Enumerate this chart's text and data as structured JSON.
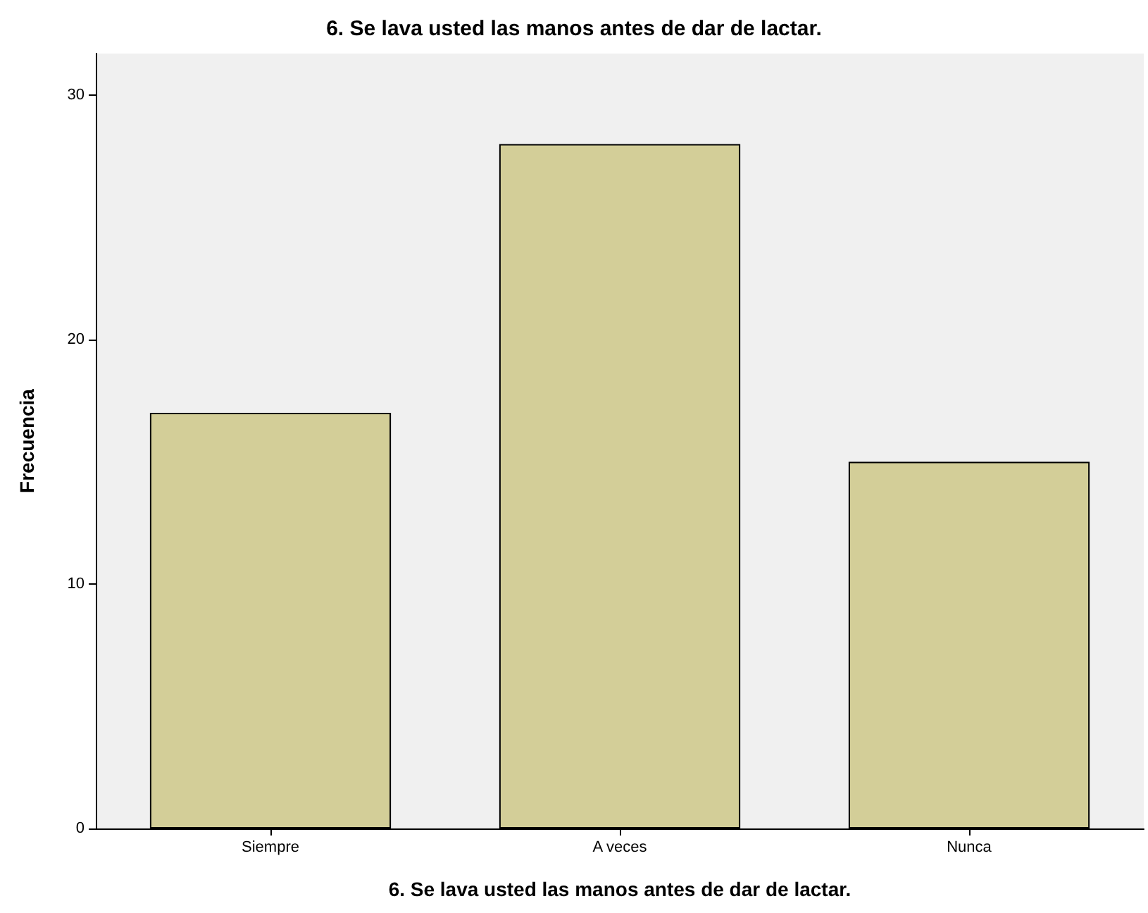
{
  "chart_data": {
    "type": "bar",
    "title": "6. Se lava usted las manos antes de dar de lactar.",
    "xlabel": "6. Se lava usted las manos antes de dar de lactar.",
    "ylabel": "Frecuencia",
    "categories": [
      "Siempre",
      "A veces",
      "Nunca"
    ],
    "values": [
      17,
      28,
      15
    ],
    "color": "#d3ce98",
    "ylim": [
      0,
      31.7
    ],
    "yticks": [
      0,
      10,
      20,
      30
    ],
    "grid": false
  }
}
